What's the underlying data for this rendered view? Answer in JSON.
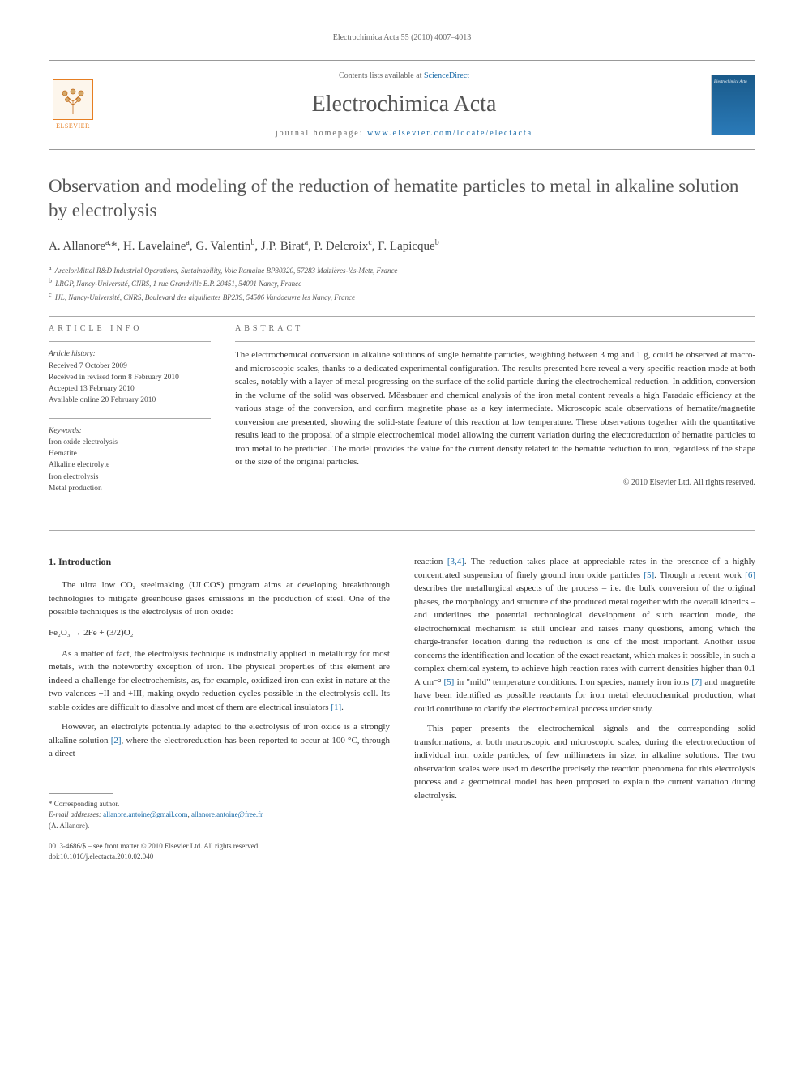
{
  "header": {
    "citation": "Electrochimica Acta 55 (2010) 4007–4013",
    "contents_prefix": "Contents lists available at ",
    "contents_link": "ScienceDirect",
    "journal_name": "Electrochimica Acta",
    "homepage_prefix": "journal homepage: ",
    "homepage_link": "www.elsevier.com/locate/electacta",
    "publisher": "ELSEVIER",
    "cover_text": "Electrochimica Acta"
  },
  "article": {
    "title": "Observation and modeling of the reduction of hematite particles to metal in alkaline solution by electrolysis",
    "authors_html": "A. Allanore<sup>a,</sup>*, H. Lavelaine<sup>a</sup>, G. Valentin<sup>b</sup>, J.P. Birat<sup>a</sup>, P. Delcroix<sup>c</sup>, F. Lapicque<sup>b</sup>",
    "affiliations": [
      {
        "sup": "a",
        "text": "ArcelorMittal R&D Industrial Operations, Sustainability, Voie Romaine BP30320, 57283 Maizières-lès-Metz, France"
      },
      {
        "sup": "b",
        "text": "LRGP, Nancy-Université, CNRS, 1 rue Grandville B.P. 20451, 54001 Nancy, France"
      },
      {
        "sup": "c",
        "text": "IJL, Nancy-Université, CNRS, Boulevard des aiguillettes BP239, 54506 Vandoeuvre les Nancy, France"
      }
    ]
  },
  "info": {
    "heading": "ARTICLE INFO",
    "history_label": "Article history:",
    "history": [
      "Received 7 October 2009",
      "Received in revised form 8 February 2010",
      "Accepted 13 February 2010",
      "Available online 20 February 2010"
    ],
    "keywords_label": "Keywords:",
    "keywords": [
      "Iron oxide electrolysis",
      "Hematite",
      "Alkaline electrolyte",
      "Iron electrolysis",
      "Metal production"
    ]
  },
  "abstract": {
    "heading": "ABSTRACT",
    "text": "The electrochemical conversion in alkaline solutions of single hematite particles, weighting between 3 mg and 1 g, could be observed at macro- and microscopic scales, thanks to a dedicated experimental configuration. The results presented here reveal a very specific reaction mode at both scales, notably with a layer of metal progressing on the surface of the solid particle during the electrochemical reduction. In addition, conversion in the volume of the solid was observed. Mössbauer and chemical analysis of the iron metal content reveals a high Faradaic efficiency at the various stage of the conversion, and confirm magnetite phase as a key intermediate. Microscopic scale observations of hematite/magnetite conversion are presented, showing the solid-state feature of this reaction at low temperature. These observations together with the quantitative results lead to the proposal of a simple electrochemical model allowing the current variation during the electroreduction of hematite particles to iron metal to be predicted. The model provides the value for the current density related to the hematite reduction to iron, regardless of the shape or the size of the original particles.",
    "copyright": "© 2010 Elsevier Ltd. All rights reserved."
  },
  "body": {
    "section_number": "1.",
    "section_title": "Introduction",
    "col1": {
      "p1": "The ultra low CO₂ steelmaking (ULCOS) program aims at developing breakthrough technologies to mitigate greenhouse gases emissions in the production of steel. One of the possible techniques is the electrolysis of iron oxide:",
      "reaction": "Fe₂O₃ → 2Fe + (3/2)O₂",
      "p2": "As a matter of fact, the electrolysis technique is industrially applied in metallurgy for most metals, with the noteworthy exception of iron. The physical properties of this element are indeed a challenge for electrochemists, as, for example, oxidized iron can exist in nature at the two valences +II and +III, making oxydo-reduction cycles possible in the electrolysis cell. Its stable oxides are difficult to dissolve and most of them are electrical insulators [1].",
      "p3": "However, an electrolyte potentially adapted to the electrolysis of iron oxide is a strongly alkaline solution [2], where the electroreduction has been reported to occur at 100 °C, through a direct"
    },
    "col2": {
      "p1": "reaction [3,4]. The reduction takes place at appreciable rates in the presence of a highly concentrated suspension of finely ground iron oxide particles [5]. Though a recent work [6] describes the metallurgical aspects of the process – i.e. the bulk conversion of the original phases, the morphology and structure of the produced metal together with the overall kinetics – and underlines the potential technological development of such reaction mode, the electrochemical mechanism is still unclear and raises many questions, among which the charge-transfer location during the reduction is one of the most important. Another issue concerns the identification and location of the exact reactant, which makes it possible, in such a complex chemical system, to achieve high reaction rates with current densities higher than 0.1 A cm⁻² [5] in \"mild\" temperature conditions. Iron species, namely iron ions [7] and magnetite have been identified as possible reactants for iron metal electrochemical production, what could contribute to clarify the electrochemical process under study.",
      "p2": "This paper presents the electrochemical signals and the corresponding solid transformations, at both macroscopic and microscopic scales, during the electroreduction of individual iron oxide particles, of few millimeters in size, in alkaline solutions. The two observation scales were used to describe precisely the reaction phenomena for this electrolysis process and a geometrical model has been proposed to explain the current variation during electrolysis."
    }
  },
  "footer": {
    "corr_label": "* Corresponding author.",
    "email_label": "E-mail addresses:",
    "emails": [
      "allanore.antoine@gmail.com",
      "allanore.antoine@free.fr"
    ],
    "email_person": "(A. Allanore).",
    "issn_line": "0013-4686/$ – see front matter © 2010 Elsevier Ltd. All rights reserved.",
    "doi": "doi:10.1016/j.electacta.2010.02.040"
  },
  "colors": {
    "link": "#1a6ba8",
    "text": "#333333",
    "muted": "#666666",
    "elsevier_orange": "#e67e22",
    "cover_blue": "#1a5a8a"
  }
}
